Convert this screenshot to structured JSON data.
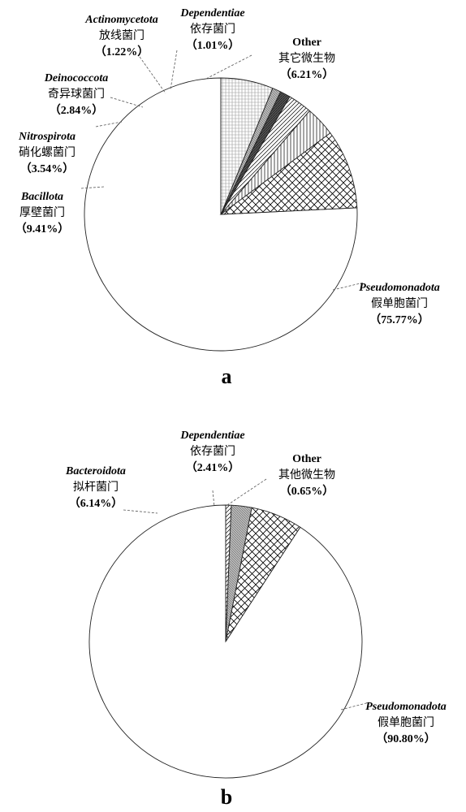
{
  "chart_data": [
    {
      "type": "pie",
      "panel_label": "a",
      "start_angle_deg": 0,
      "direction": "counterclockwise",
      "slices": [
        {
          "latin": "Pseudomonadota",
          "cn": "假单胞菌门",
          "value": 75.77,
          "label": "（75.77%）",
          "pattern": "none"
        },
        {
          "latin": "Bacillota",
          "cn": "厚壁菌门",
          "value": 9.41,
          "label": "（9.41%）",
          "pattern": "crosshatch"
        },
        {
          "latin": "Nitrospirota",
          "cn": "硝化螺菌门",
          "value": 3.54,
          "label": "（3.54%）",
          "pattern": "vertical"
        },
        {
          "latin": "Deinococcota",
          "cn": "奇异球菌门",
          "value": 2.84,
          "label": "（2.84%）",
          "pattern": "diagonal"
        },
        {
          "latin": "Actinomycetota",
          "cn": "放线菌门",
          "value": 1.22,
          "label": "（1.22%）",
          "pattern": "dark"
        },
        {
          "latin": "Dependentiae",
          "cn": "依存菌门",
          "value": 1.01,
          "label": "（1.01%）",
          "pattern": "dense"
        },
        {
          "latin": "Other",
          "cn": "其它微生物",
          "value": 6.21,
          "label": "（6.21%）",
          "pattern": "grid"
        }
      ]
    },
    {
      "type": "pie",
      "panel_label": "b",
      "start_angle_deg": 0,
      "direction": "counterclockwise",
      "slices": [
        {
          "latin": "Pseudomonadota",
          "cn": "假单胞菌门",
          "value": 90.8,
          "label": "（90.80%）",
          "pattern": "none"
        },
        {
          "latin": "Bacteroidota",
          "cn": "拟杆菌门",
          "value": 6.14,
          "label": "（6.14%）",
          "pattern": "crosshatch"
        },
        {
          "latin": "Dependentiae",
          "cn": "依存菌门",
          "value": 2.41,
          "label": "（2.41%）",
          "pattern": "dense"
        },
        {
          "latin": "Other",
          "cn": "其他微生物",
          "value": 0.65,
          "label": "（0.65%）",
          "pattern": "diagonal"
        }
      ]
    }
  ]
}
